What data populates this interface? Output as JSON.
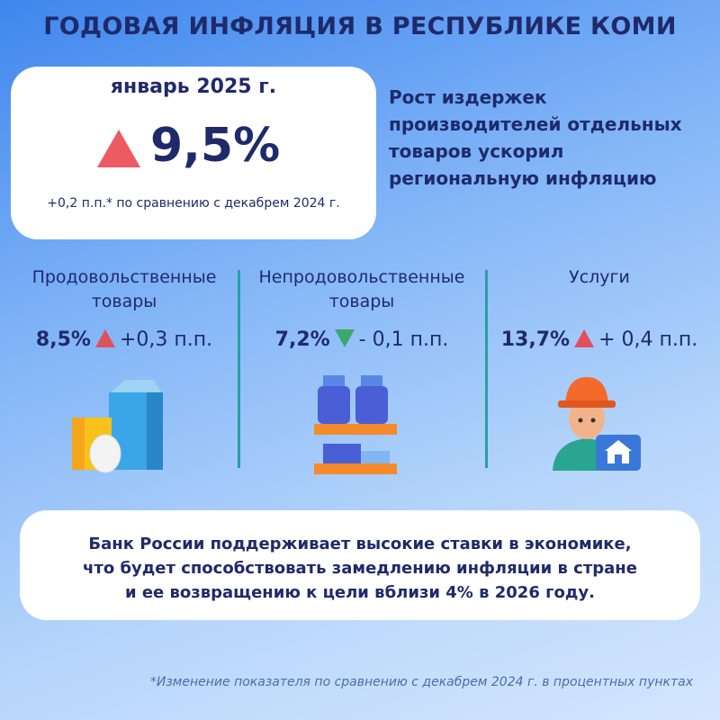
{
  "title": "ГОДОВАЯ ИНФЛЯЦИЯ В РЕСПУБЛИКЕ КОМИ",
  "headline": {
    "period": "январь 2025 г.",
    "value": "9,5%",
    "change": "+0,2 п.п.* по сравнению с декабрем 2024 г."
  },
  "summary": [
    "Рост издержек",
    "производителей отдельных",
    "товаров ускорил",
    "региональную инфляцию"
  ],
  "categories": [
    {
      "name": "Продовольственные товары",
      "value": "8,5%",
      "change": "+0,3 п.п.",
      "direction": "up"
    },
    {
      "name": "Непродовольственные товары",
      "value": "7,2%",
      "change": "- 0,1 п.п.",
      "direction": "down"
    },
    {
      "name": "Услуги",
      "value": "13,7%",
      "change": "+ 0,4 п.п.",
      "direction": "up"
    }
  ],
  "note": [
    "Банк России поддерживает высокие ставки в экономике,",
    "что будет способствовать замедлению инфляции в стране",
    "и ее возвращению к цели вблизи 4% в 2026 году."
  ],
  "footnote": "*Изменение  показателя по сравнению с декабрем 2024 г. в процентных пунктах"
}
